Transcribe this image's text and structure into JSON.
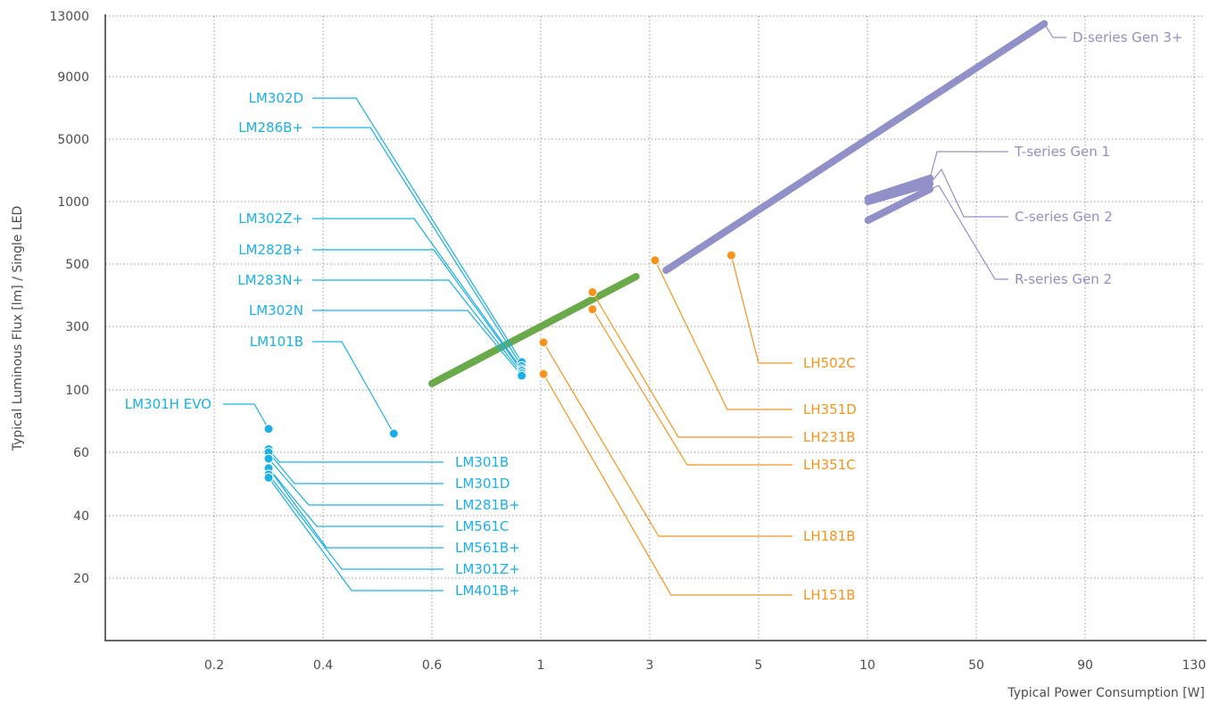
{
  "chart_data": {
    "type": "scatter",
    "xlabel": "Typical Power Consumption [W]",
    "ylabel": "Typical Luminous Flux [lm] / Single LED",
    "x_ticks": [
      "0.2",
      "0.4",
      "0.6",
      "1",
      "3",
      "5",
      "10",
      "50",
      "90",
      "130"
    ],
    "y_ticks": [
      "20",
      "40",
      "60",
      "100",
      "300",
      "500",
      "1000",
      "5000",
      "9000",
      "13000"
    ],
    "grid": true,
    "colors": {
      "mid_power": "#1ab0e8",
      "high_power": "#f7941d",
      "chip_on_board": "#9290c9",
      "trend": "#6aaa4a",
      "axis": "#666666",
      "grid": "#999999"
    },
    "mid_power": [
      {
        "label": "LM302D",
        "x": 0.93,
        "y": 188
      },
      {
        "label": "LM286B+",
        "x": 0.93,
        "y": 175
      },
      {
        "label": "LM302Z+",
        "x": 0.93,
        "y": 165
      },
      {
        "label": "LM282B+",
        "x": 0.93,
        "y": 160
      },
      {
        "label": "LM283N+",
        "x": 0.93,
        "y": 152
      },
      {
        "label": "LM302N",
        "x": 0.93,
        "y": 145
      },
      {
        "label": "LM101B",
        "x": 0.53,
        "y": 72
      },
      {
        "label": "LM301H EVO",
        "x": 0.3,
        "y": 75
      },
      {
        "label": "LM301B",
        "x": 0.3,
        "y": 62
      },
      {
        "label": "LM301D",
        "x": 0.3,
        "y": 60
      },
      {
        "label": "LM281B+",
        "x": 0.3,
        "y": 58
      },
      {
        "label": "LM561C",
        "x": 0.3,
        "y": 55
      },
      {
        "label": "LM561B+",
        "x": 0.3,
        "y": 55
      },
      {
        "label": "LM301Z+",
        "x": 0.3,
        "y": 53
      },
      {
        "label": "LM401B+",
        "x": 0.3,
        "y": 52
      }
    ],
    "high_power": [
      {
        "label": "LH502C",
        "x": 4.5,
        "y": 570
      },
      {
        "label": "LH351D",
        "x": 3.1,
        "y": 530
      },
      {
        "label": "LH231B",
        "x": 1.95,
        "y": 410
      },
      {
        "label": "LH351C",
        "x": 1.95,
        "y": 355
      },
      {
        "label": "LH181B",
        "x": 1.05,
        "y": 250
      },
      {
        "label": "LH151B",
        "x": 1.05,
        "y": 150
      }
    ],
    "series_lines": [
      {
        "name": "D-series Gen 3+",
        "x": [
          3.3,
          75
        ],
        "y": [
          480,
          12500
        ]
      },
      {
        "name": "T-series Gen 1",
        "x": [
          10.2,
          33
        ],
        "y": [
          1200,
          2500
        ]
      },
      {
        "name": "C-series Gen 2",
        "x": [
          10.2,
          33
        ],
        "y": [
          1000,
          2150
        ]
      },
      {
        "name": "R-series Gen 2",
        "x": [
          10.2,
          33
        ],
        "y": [
          850,
          1800
        ]
      },
      {
        "name": "",
        "x": [
          0.6,
          2.75
        ],
        "y": [
          120,
          460
        ]
      }
    ],
    "legend_labels": {
      "mid_left": [
        "LM302D",
        "LM286B+",
        "LM302Z+",
        "LM282B+",
        "LM283N+",
        "LM302N",
        "LM101B",
        "LM301H EVO"
      ],
      "mid_right": [
        "LM301B",
        "LM301D",
        "LM281B+",
        "LM561C",
        "LM561B+",
        "LM301Z+",
        "LM401B+"
      ],
      "high": [
        "LH502C",
        "LH351D",
        "LH231B",
        "LH351C",
        "LH181B",
        "LH151B"
      ],
      "cob": [
        "D-series Gen 3+",
        "T-series Gen 1",
        "C-series Gen 2",
        "R-series Gen 2"
      ]
    }
  }
}
